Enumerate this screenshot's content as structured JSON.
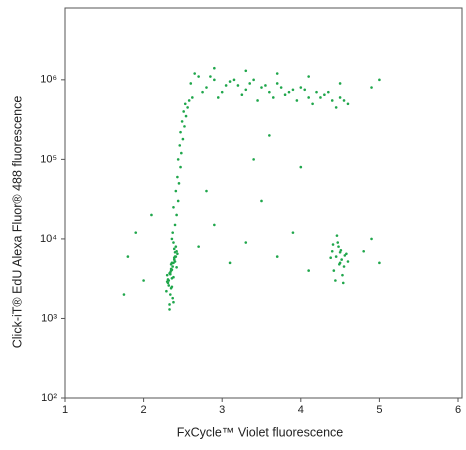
{
  "chart_data": {
    "type": "scatter",
    "xlabel": "FxCycle™ Violet fluorescence",
    "ylabel": "Click-iT® EdU Alexa Fluor® 488 fluorescence",
    "color": "#1fa64b",
    "ylog": true,
    "xlim": [
      1,
      6
    ],
    "xticks": [
      1,
      2,
      3,
      4,
      5,
      6
    ],
    "ylim": [
      100,
      8000000
    ],
    "yticks": [
      {
        "value": 100,
        "label": "10²"
      },
      {
        "value": 1000,
        "label": "10³"
      },
      {
        "value": 10000,
        "label": "10⁴"
      },
      {
        "value": 100000,
        "label": "10⁵"
      },
      {
        "value": 1000000,
        "label": "10⁶"
      }
    ],
    "x": [
      2.35,
      2.38,
      2.32,
      2.4,
      2.36,
      2.3,
      2.42,
      2.37,
      2.34,
      2.39,
      2.33,
      2.41,
      2.36,
      2.31,
      2.38,
      2.35,
      2.43,
      2.29,
      2.37,
      2.34,
      2.4,
      2.36,
      2.32,
      2.39,
      2.35,
      2.38,
      2.33,
      2.41,
      2.36,
      2.3,
      2.37,
      2.34,
      2.39,
      2.35,
      2.42,
      2.31,
      2.38,
      2.36,
      2.33,
      2.4,
      2.4,
      2.42,
      2.38,
      2.44,
      2.41,
      2.45,
      2.43,
      2.47,
      2.44,
      2.48,
      2.46,
      2.5,
      2.47,
      2.52,
      2.49,
      2.54,
      2.51,
      2.56,
      2.53,
      2.58,
      2.6,
      2.7,
      2.8,
      2.9,
      3.0,
      3.1,
      3.2,
      3.3,
      3.4,
      3.5,
      3.6,
      3.7,
      3.8,
      3.9,
      4.0,
      4.1,
      4.2,
      4.3,
      4.4,
      4.5,
      4.6,
      2.65,
      2.75,
      2.85,
      2.95,
      3.05,
      3.15,
      3.25,
      3.35,
      3.45,
      3.55,
      3.65,
      3.75,
      3.85,
      3.95,
      4.05,
      4.15,
      4.25,
      4.35,
      4.45,
      4.55,
      2.62,
      2.9,
      3.3,
      3.7,
      4.1,
      4.5,
      4.9,
      5.0,
      4.45,
      4.5,
      4.4,
      4.55,
      4.48,
      4.52,
      4.42,
      4.58,
      4.47,
      4.53,
      4.38,
      4.6,
      4.46,
      4.51,
      4.44,
      4.56,
      4.49,
      4.41,
      4.54,
      4.5,
      1.8,
      1.9,
      2.0,
      2.1,
      2.7,
      2.9,
      3.1,
      3.3,
      3.5,
      3.7,
      3.9,
      4.1,
      4.9,
      5.0,
      1.75,
      2.8,
      3.4,
      4.0,
      3.6,
      4.8
    ],
    "values": [
      4000,
      5000,
      3000,
      6000,
      2500,
      3500,
      7000,
      4500,
      2000,
      5500,
      1500,
      8000,
      3200,
      2800,
      9000,
      4200,
      6500,
      2200,
      1800,
      3800,
      5200,
      10000,
      2600,
      7500,
      4800,
      3300,
      1300,
      6000,
      4100,
      2900,
      12000,
      3600,
      5800,
      2400,
      4400,
      3100,
      1600,
      5000,
      3700,
      6800,
      15000,
      20000,
      25000,
      30000,
      40000,
      50000,
      60000,
      80000,
      100000,
      120000,
      150000,
      180000,
      220000,
      260000,
      300000,
      350000,
      400000,
      450000,
      500000,
      550000,
      900000,
      1100000,
      800000,
      1000000,
      700000,
      950000,
      850000,
      750000,
      1000000,
      800000,
      700000,
      900000,
      650000,
      750000,
      800000,
      600000,
      700000,
      650000,
      550000,
      600000,
      500000,
      1200000,
      700000,
      1100000,
      600000,
      850000,
      1000000,
      650000,
      900000,
      550000,
      850000,
      600000,
      800000,
      700000,
      550000,
      750000,
      500000,
      600000,
      700000,
      450000,
      550000,
      600000,
      1400000,
      1300000,
      1200000,
      1100000,
      900000,
      800000,
      1000000,
      6000,
      5000,
      7000,
      4500,
      8000,
      5500,
      4000,
      6500,
      9000,
      3500,
      5800,
      5200,
      11000,
      7200,
      3000,
      6200,
      4800,
      8500,
      2800,
      6800,
      6000,
      12000,
      3000,
      20000,
      8000,
      15000,
      5000,
      9000,
      30000,
      6000,
      12000,
      4000,
      10000,
      5000,
      2000,
      40000,
      100000,
      80000,
      200000,
      7000
    ]
  }
}
